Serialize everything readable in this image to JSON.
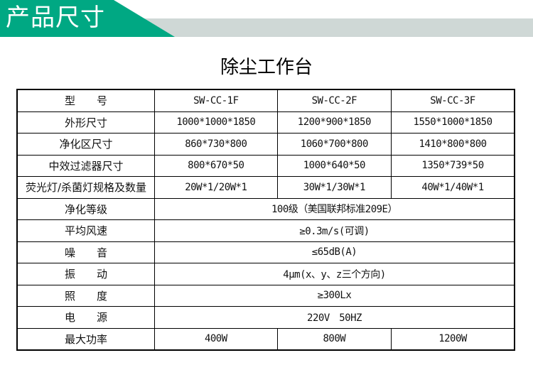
{
  "header": {
    "title": "产品尺寸",
    "colors": {
      "green": "#00a883",
      "gray": "#cfd8d6"
    }
  },
  "table_title": "除尘工作台",
  "rows_split": [
    {
      "label": "型　　号",
      "values": [
        "SW-CC-1F",
        "SW-CC-2F",
        "SW-CC-3F"
      ]
    },
    {
      "label": "外形尺寸",
      "values": [
        "1000*1000*1850",
        "1200*900*1850",
        "1550*1000*1850"
      ]
    },
    {
      "label": "净化区尺寸",
      "values": [
        "860*730*800",
        "1060*700*800",
        "1410*800*800"
      ]
    },
    {
      "label": "中效过滤器尺寸",
      "values": [
        "800*670*50",
        "1000*640*50",
        "1350*739*50"
      ]
    },
    {
      "label": "荧光灯/杀菌灯规格及数量",
      "values": [
        "20W*1/20W*1",
        "30W*1/30W*1",
        "40W*1/40W*1"
      ]
    }
  ],
  "rows_merged": [
    {
      "label": "净化等级",
      "value": "100级（美国联邦标准209E）"
    },
    {
      "label": "平均风速",
      "value": "≥0.3m/s(可调)"
    },
    {
      "label": "噪　　音",
      "value": "≤65dB(A)"
    },
    {
      "label": "振　　动",
      "value": "4μm(x、y、z三个方向)"
    },
    {
      "label": "照　　度",
      "value": "≥300Lx"
    },
    {
      "label": "电　　源",
      "value": "220V　50HZ"
    }
  ],
  "last_row": {
    "label": "最大功率",
    "values": [
      "400W",
      "800W",
      "1200W"
    ]
  }
}
